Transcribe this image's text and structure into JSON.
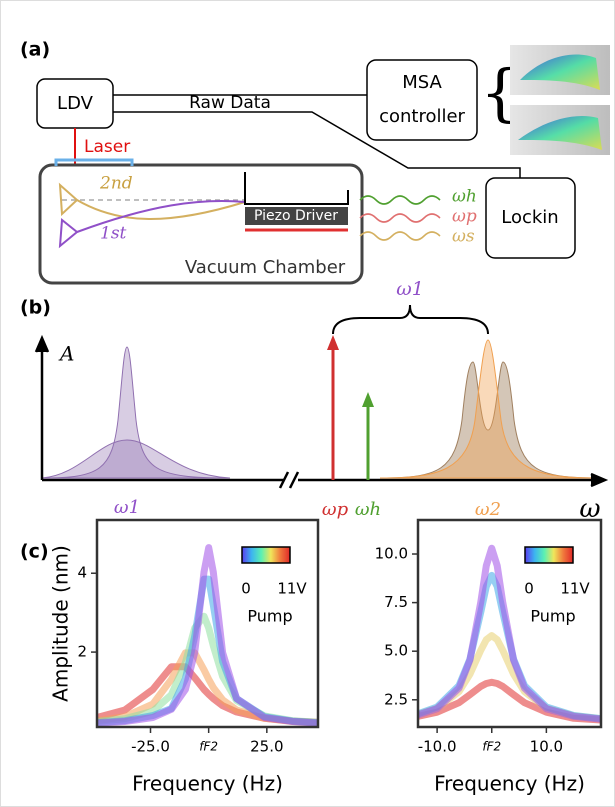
{
  "panel_a": {
    "label": "(a)",
    "ldv": "LDV",
    "raw_data": "Raw Data",
    "msa": [
      "MSA",
      "controller"
    ],
    "laser": "Laser",
    "lockin": "Lockin",
    "chamber": "Vacuum Chamber",
    "mode2": "2nd",
    "mode1": "1st",
    "piezo": "Piezo Driver",
    "drives": [
      "ωh",
      "ωp",
      "ωs"
    ]
  },
  "panel_b": {
    "label": "(b)",
    "y_axis": "A",
    "x_axis": "ω",
    "omega1": "ω1",
    "omega_p": "ωp",
    "omega_h": "ωh",
    "omega2": "ω2",
    "brace": "ω1"
  },
  "panel_c": {
    "label": "(c)"
  },
  "chart_data": [
    {
      "type": "line",
      "y_label": "Amplitude (nm)",
      "x_label": "Frequency (Hz)",
      "xlim": [
        -48,
        47
      ],
      "ylim": [
        0.1,
        5.35
      ],
      "xticks": [
        {
          "value": -25,
          "label": "-25.0"
        },
        {
          "value": 0,
          "label": "fF2"
        },
        {
          "value": 25,
          "label": "25.0"
        }
      ],
      "yticks": [
        2,
        4
      ],
      "x": [
        -48,
        -36,
        -24,
        -16,
        -10,
        -6,
        -2,
        0,
        2,
        6,
        12,
        24,
        36,
        47
      ],
      "series": [
        {
          "color": "#e03030",
          "values": [
            0.34,
            0.53,
            1.05,
            1.63,
            1.63,
            1.35,
            1.05,
            0.93,
            0.82,
            0.64,
            0.48,
            0.32,
            0.25,
            0.22
          ]
        },
        {
          "color": "#f5a05a",
          "values": [
            0.26,
            0.36,
            0.68,
            1.31,
            1.98,
            1.98,
            1.55,
            1.31,
            1.1,
            0.79,
            0.53,
            0.32,
            0.24,
            0.21
          ]
        },
        {
          "color": "#8fe0a0",
          "values": [
            0.24,
            0.31,
            0.5,
            0.92,
            1.73,
            2.61,
            2.91,
            2.61,
            2.16,
            1.38,
            0.77,
            0.38,
            0.26,
            0.22
          ]
        },
        {
          "color": "#40a8e8",
          "values": [
            0.21,
            0.26,
            0.39,
            0.57,
            1.32,
            2.4,
            3.85,
            3.85,
            3.19,
            1.76,
            0.82,
            0.36,
            0.25,
            0.21
          ]
        },
        {
          "color": "#a050e8",
          "values": [
            0.2,
            0.24,
            0.34,
            0.55,
            1.05,
            1.99,
            4.03,
            4.65,
            4.03,
            1.99,
            0.82,
            0.34,
            0.24,
            0.2
          ]
        }
      ],
      "colorbar": {
        "colors": [
          "#5a3cf0",
          "#3cb4f0",
          "#5af0b4",
          "#f0e65a",
          "#f0783c",
          "#e02828"
        ],
        "min_label": "0",
        "max_label": "11V",
        "title": "Pump"
      }
    },
    {
      "type": "line",
      "x_label": "Frequency (Hz)",
      "xlim": [
        -13.5,
        20
      ],
      "ylim": [
        1.1,
        11.75
      ],
      "xticks": [
        {
          "value": -10,
          "label": "-10.0"
        },
        {
          "value": 0,
          "label": "fF2"
        },
        {
          "value": 10,
          "label": "10.0"
        }
      ],
      "yticks": [
        2.5,
        {
          "value": 5,
          "label": "5.0"
        },
        7.5,
        {
          "value": 10,
          "label": "10.0"
        }
      ],
      "x": [
        -13.5,
        -10,
        -6,
        -4,
        -2,
        -1,
        0,
        1,
        2,
        4,
        6,
        10,
        15,
        20
      ],
      "series": [
        {
          "color": "#e03030",
          "values": [
            1.65,
            1.86,
            2.35,
            2.76,
            3.19,
            3.34,
            3.4,
            3.34,
            3.19,
            2.76,
            2.35,
            1.86,
            1.55,
            1.46
          ]
        },
        {
          "color": "#e8d070",
          "values": [
            1.75,
            2.06,
            2.92,
            3.81,
            5.05,
            5.59,
            5.8,
            5.59,
            5.05,
            3.81,
            2.92,
            2.06,
            1.67,
            1.52
          ]
        },
        {
          "color": "#40a8e8",
          "values": [
            1.78,
            2.13,
            3.23,
            4.59,
            7.01,
            8.33,
            8.9,
            8.33,
            7.01,
            4.59,
            3.23,
            2.13,
            1.69,
            1.53
          ]
        },
        {
          "color": "#a050e8",
          "values": [
            1.72,
            2.04,
            3.1,
            4.54,
            7.53,
            9.4,
            10.3,
            9.4,
            7.53,
            4.54,
            3.1,
            2.04,
            1.65,
            1.5
          ]
        }
      ],
      "colorbar": {
        "colors": [
          "#5a3cf0",
          "#3cb4f0",
          "#5af0b4",
          "#f0e65a",
          "#f0783c",
          "#e02828"
        ],
        "min_label": "0",
        "max_label": "11V",
        "title": "Pump"
      }
    }
  ]
}
